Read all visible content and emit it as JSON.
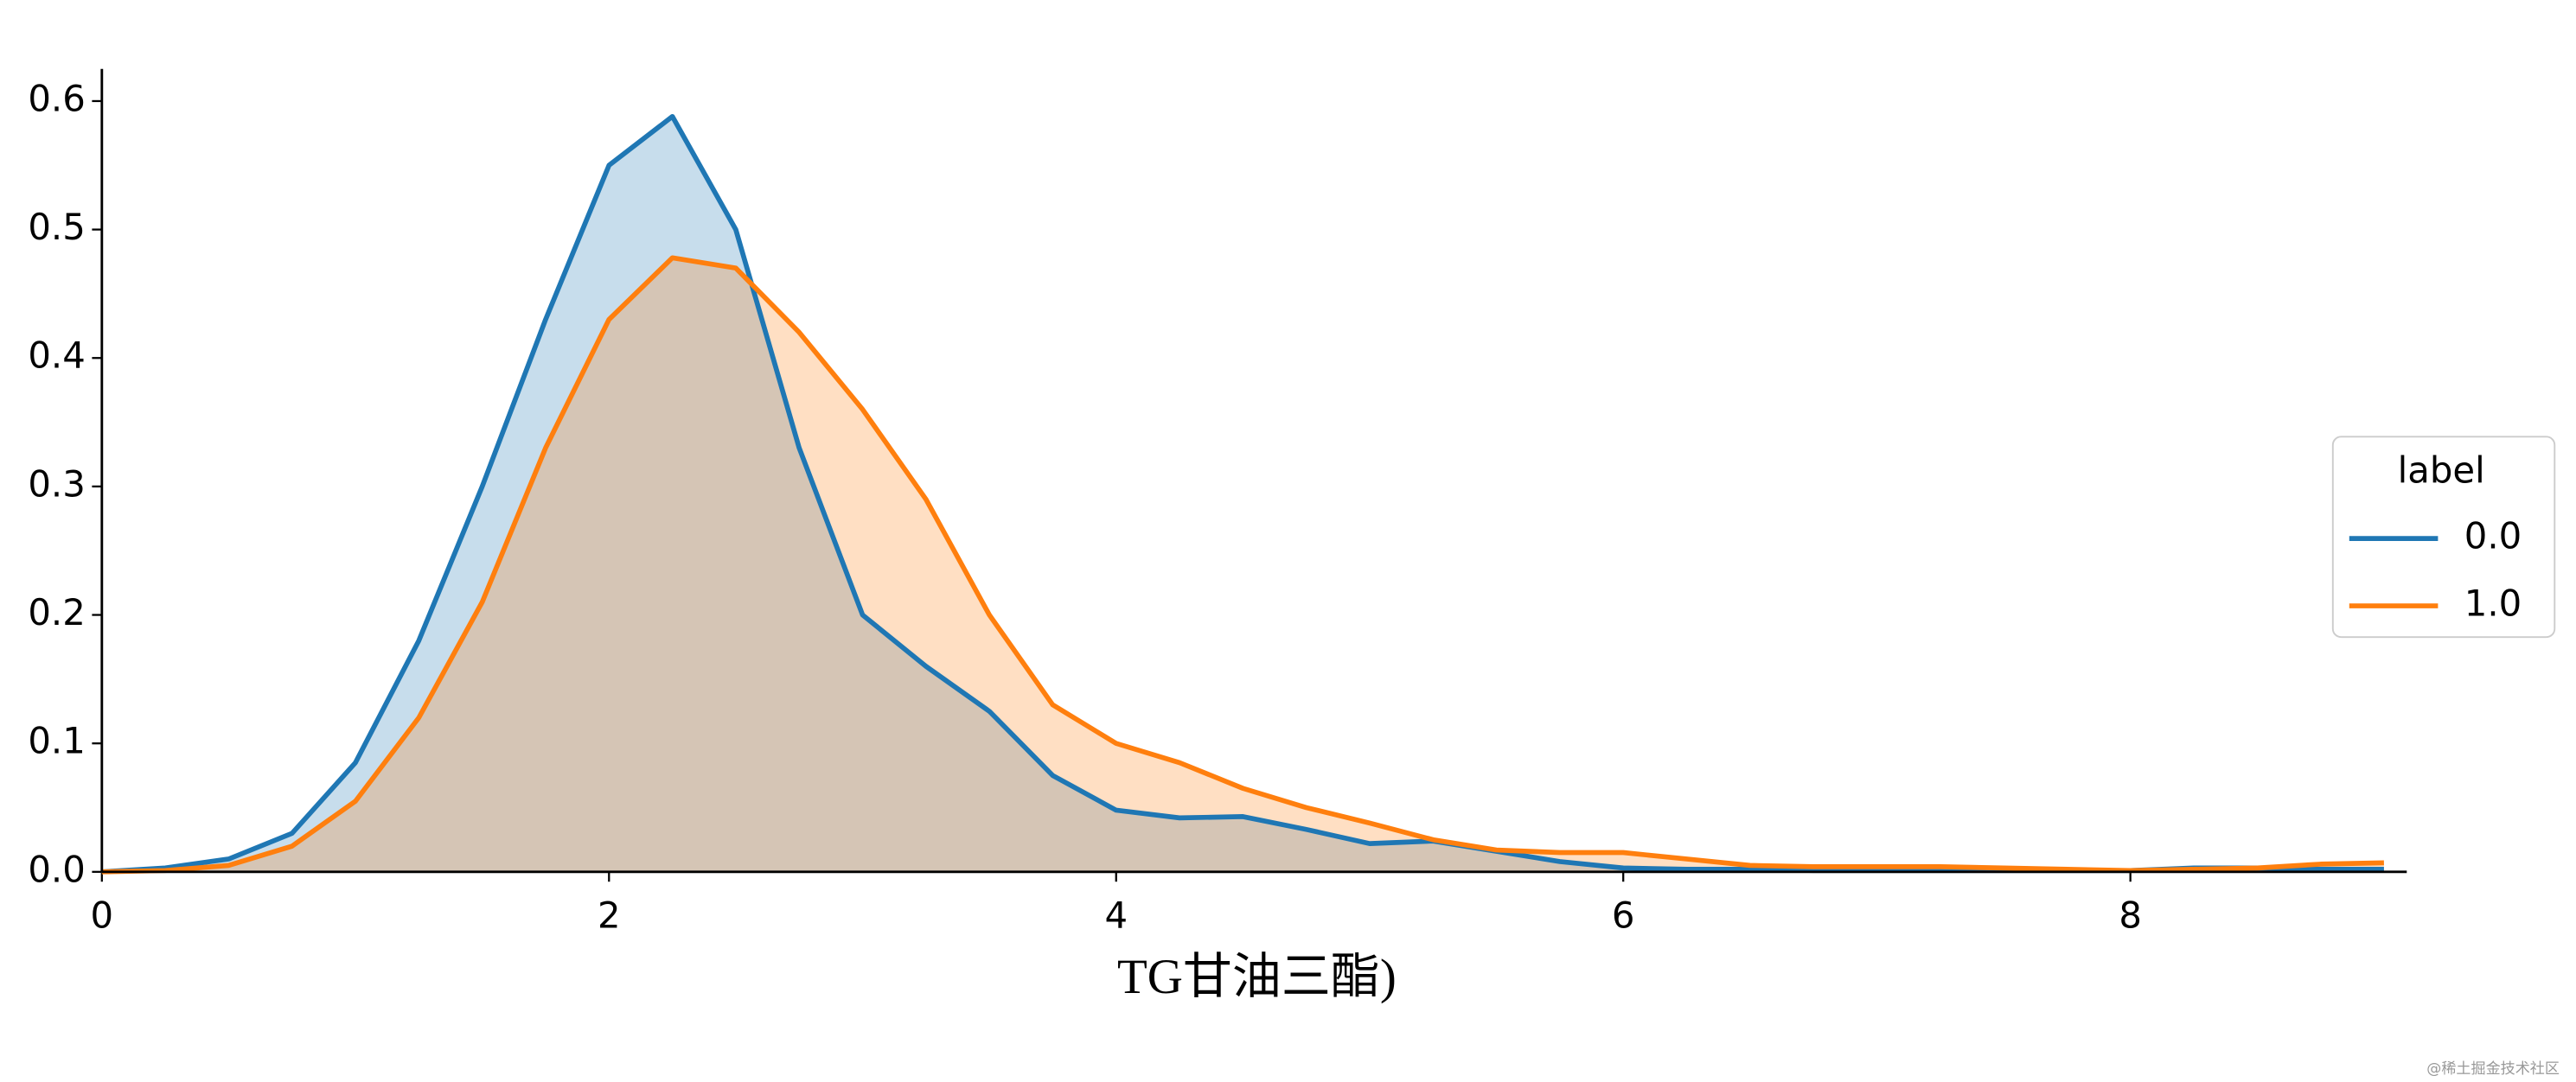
{
  "chart_data": {
    "type": "area",
    "xlabel": "TG甘油三酯)",
    "legend_title": "label",
    "legend_position": "right",
    "watermark": "@稀土掘金技术社区",
    "x": [
      0,
      0.25,
      0.5,
      0.75,
      1,
      1.25,
      1.5,
      1.75,
      2,
      2.25,
      2.5,
      2.75,
      3,
      3.25,
      3.5,
      3.75,
      4,
      4.25,
      4.5,
      4.75,
      5,
      5.25,
      5.5,
      5.75,
      6,
      6.25,
      6.5,
      6.75,
      7,
      7.25,
      7.5,
      7.75,
      8,
      8.25,
      8.5,
      8.75,
      9
    ],
    "series": [
      {
        "name": "0.0",
        "color": "#1f77b4",
        "values": [
          0,
          0.003,
          0.01,
          0.03,
          0.085,
          0.18,
          0.3,
          0.43,
          0.55,
          0.588,
          0.5,
          0.33,
          0.2,
          0.16,
          0.125,
          0.075,
          0.048,
          0.042,
          0.043,
          0.033,
          0.022,
          0.024,
          0.016,
          0.008,
          0.003,
          0.002,
          0.002,
          0.001,
          0.001,
          0.001,
          0.001,
          0.001,
          0.001,
          0.003,
          0.003,
          0.002,
          0.002
        ]
      },
      {
        "name": "1.0",
        "color": "#ff7f0e",
        "values": [
          0,
          0.001,
          0.005,
          0.02,
          0.055,
          0.12,
          0.21,
          0.33,
          0.43,
          0.478,
          0.47,
          0.42,
          0.36,
          0.29,
          0.2,
          0.13,
          0.1,
          0.085,
          0.065,
          0.05,
          0.038,
          0.025,
          0.017,
          0.015,
          0.015,
          0.01,
          0.005,
          0.004,
          0.004,
          0.004,
          0.003,
          0.002,
          0.001,
          0.002,
          0.003,
          0.006,
          0.007
        ]
      }
    ],
    "xlim": [
      0,
      9.09
    ],
    "ylim": [
      0,
      0.625
    ],
    "xticks": [
      0,
      2,
      4,
      6,
      8
    ],
    "yticks": [
      {
        "value": 0,
        "label": "0.0"
      },
      0.1,
      0.2,
      0.3,
      0.4,
      0.5,
      0.6
    ]
  }
}
